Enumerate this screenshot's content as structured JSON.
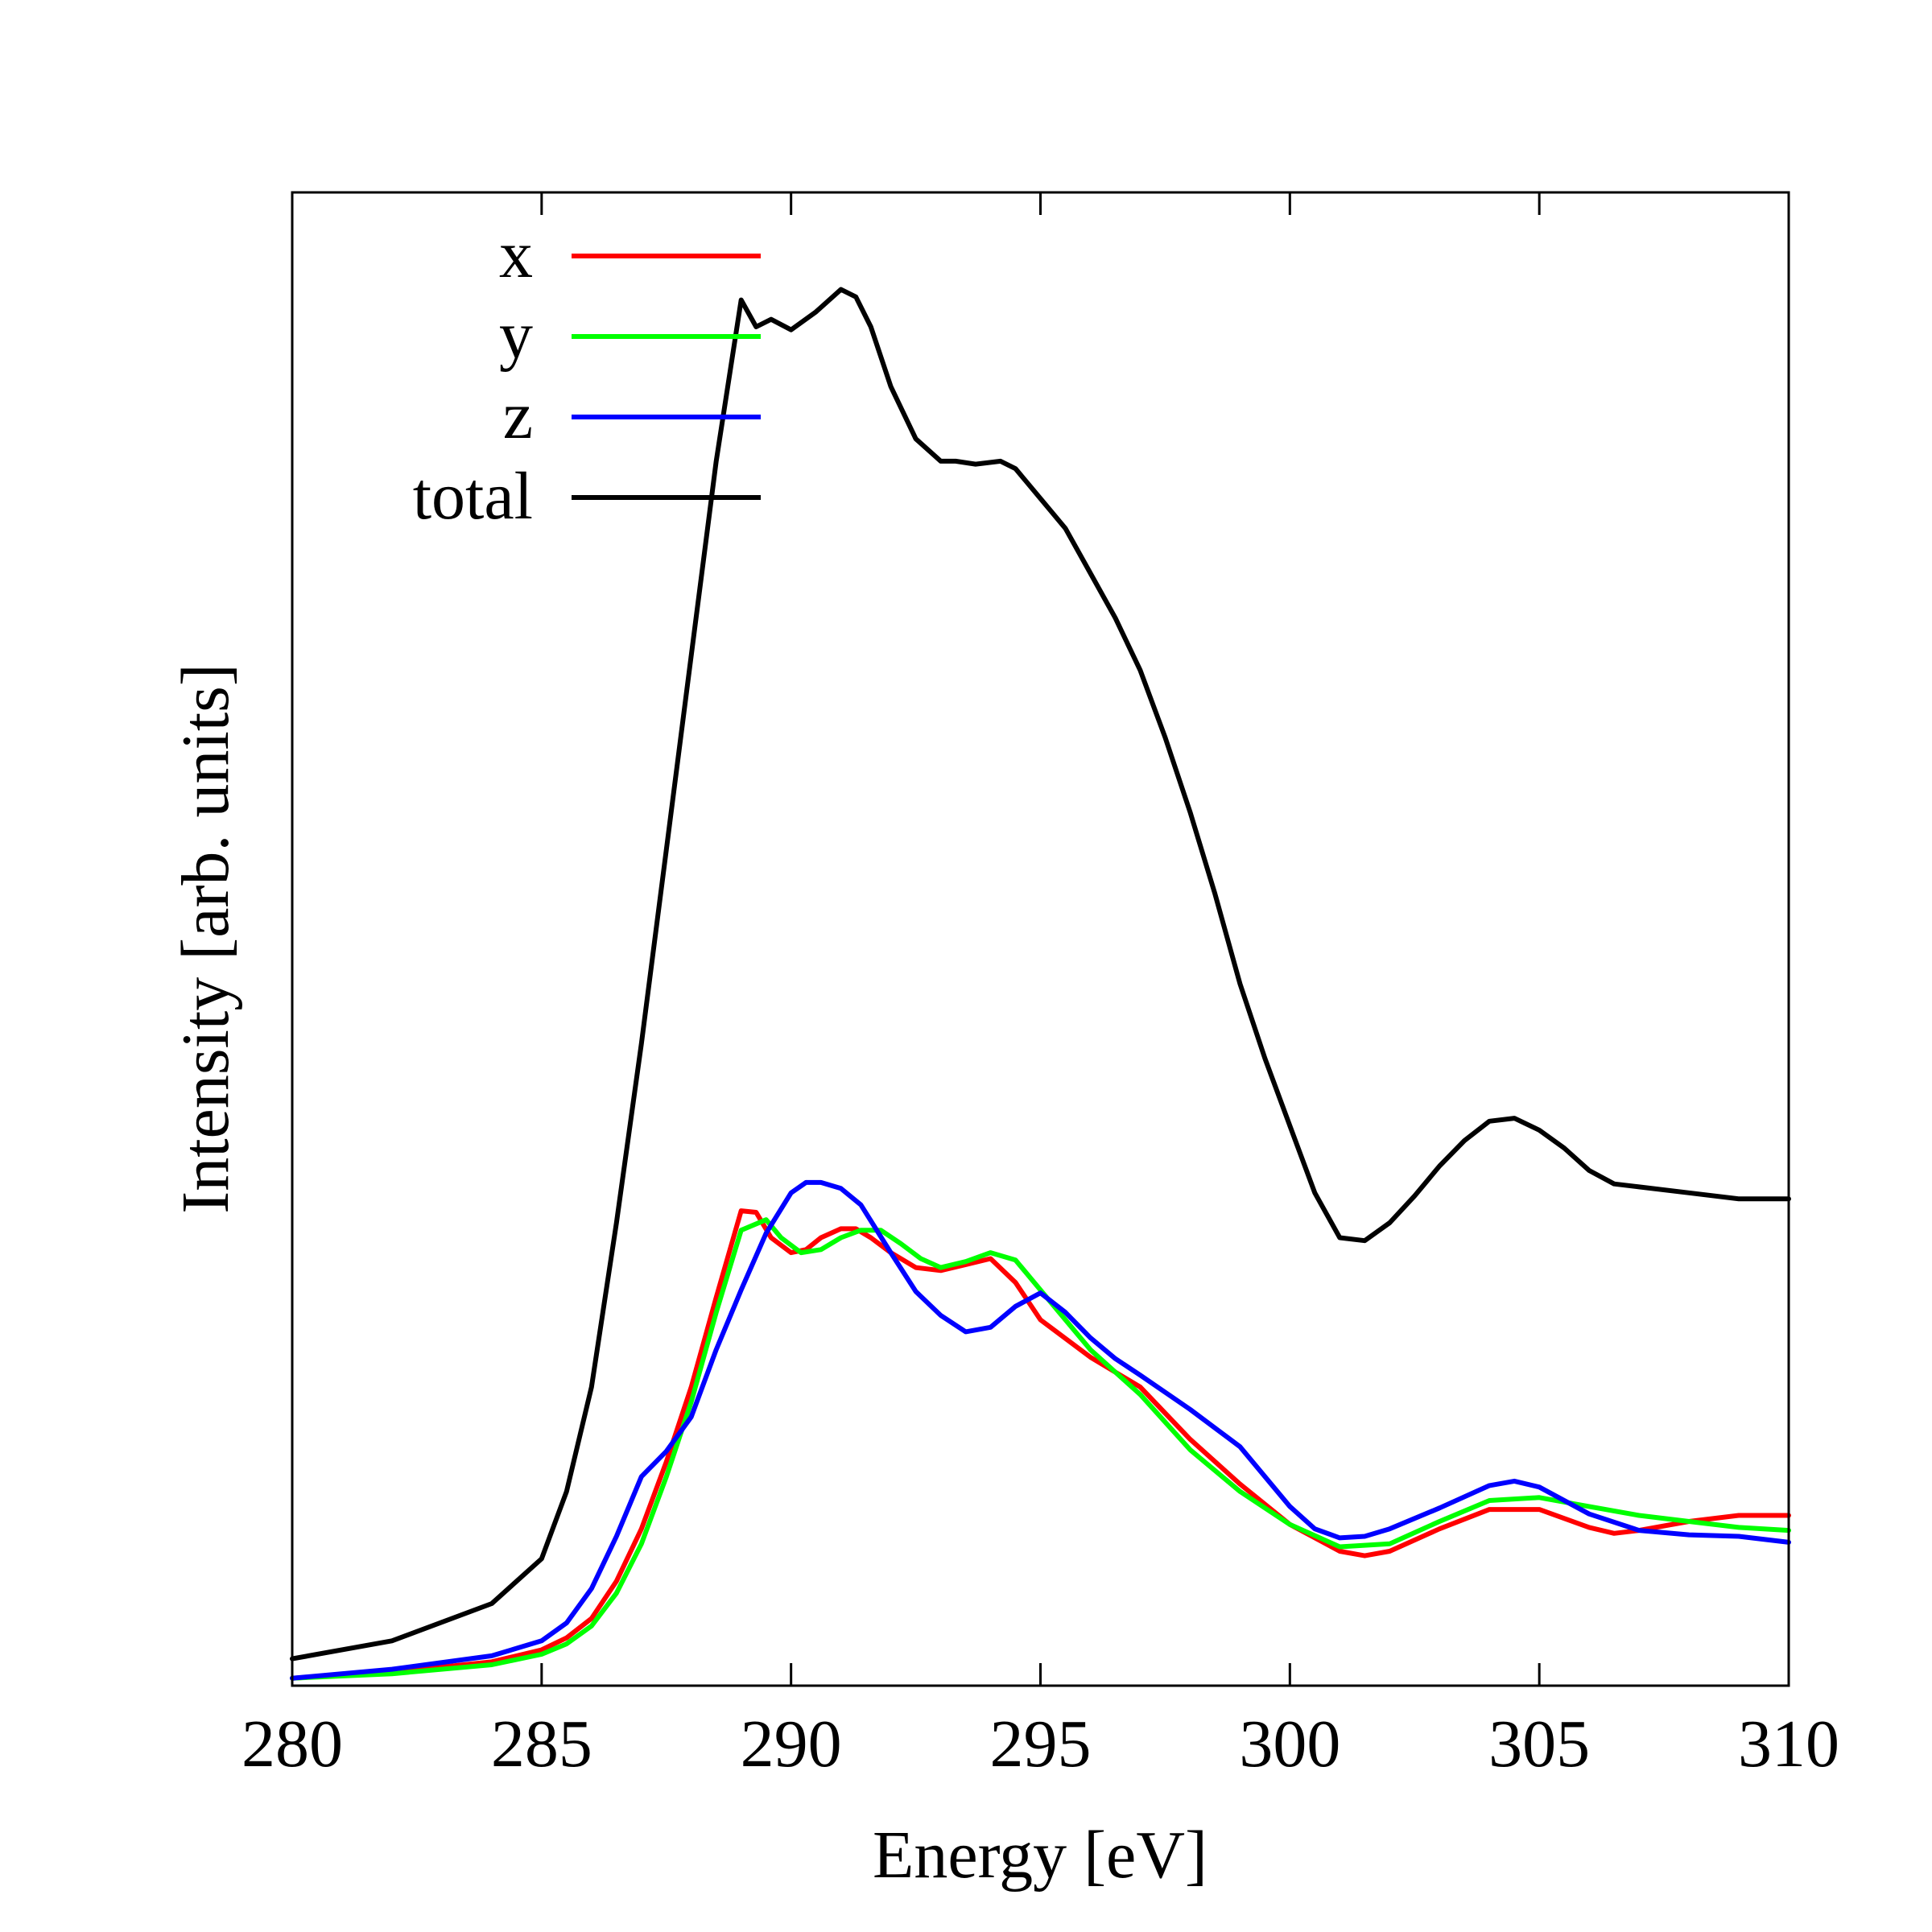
{
  "chart_data": {
    "type": "line",
    "title": "",
    "xlabel": "Energy [eV]",
    "ylabel": "Intensity [arb. units]",
    "xlim": [
      280,
      310
    ],
    "ylim": [
      0,
      1.0
    ],
    "xticks": [
      280,
      285,
      290,
      295,
      300,
      305,
      310
    ],
    "xtick_labels": [
      "280",
      "285",
      "290",
      "295",
      "300",
      "305",
      "310"
    ],
    "legend_position": "top-left",
    "series": [
      {
        "name": "x",
        "color": "#ff0000",
        "x": [
          280,
          282,
          284,
          285,
          285.5,
          286,
          286.5,
          287,
          287.5,
          288,
          288.5,
          289,
          289.3,
          289.6,
          290,
          290.3,
          290.6,
          291,
          291.3,
          291.6,
          292,
          292.5,
          293,
          293.5,
          294,
          294.5,
          295,
          296,
          297,
          298,
          299,
          300,
          301,
          301.5,
          302,
          303,
          304,
          305,
          306,
          306.5,
          307,
          308,
          309,
          310
        ],
        "y": [
          0.005,
          0.009,
          0.016,
          0.024,
          0.032,
          0.045,
          0.07,
          0.105,
          0.15,
          0.2,
          0.26,
          0.318,
          0.317,
          0.3,
          0.29,
          0.292,
          0.3,
          0.306,
          0.306,
          0.3,
          0.29,
          0.28,
          0.278,
          0.282,
          0.286,
          0.27,
          0.245,
          0.22,
          0.2,
          0.165,
          0.135,
          0.108,
          0.09,
          0.087,
          0.09,
          0.105,
          0.118,
          0.118,
          0.106,
          0.102,
          0.104,
          0.11,
          0.114,
          0.114
        ]
      },
      {
        "name": "y",
        "color": "#00ff00",
        "x": [
          280,
          282,
          284,
          285,
          285.5,
          286,
          286.5,
          287,
          287.5,
          288,
          288.5,
          289,
          289.5,
          289.8,
          290.2,
          290.6,
          291,
          291.4,
          291.8,
          292.2,
          292.6,
          293,
          293.5,
          294,
          294.5,
          295,
          296,
          297,
          298,
          299,
          300,
          301,
          302,
          303,
          304,
          305,
          306,
          307,
          308,
          309,
          310
        ],
        "y": [
          0.005,
          0.008,
          0.014,
          0.021,
          0.028,
          0.04,
          0.062,
          0.095,
          0.14,
          0.19,
          0.25,
          0.305,
          0.312,
          0.3,
          0.29,
          0.292,
          0.3,
          0.305,
          0.305,
          0.296,
          0.286,
          0.28,
          0.284,
          0.29,
          0.285,
          0.265,
          0.225,
          0.195,
          0.158,
          0.13,
          0.108,
          0.093,
          0.095,
          0.11,
          0.124,
          0.126,
          0.12,
          0.114,
          0.11,
          0.106,
          0.104
        ]
      },
      {
        "name": "z",
        "color": "#0000ff",
        "x": [
          280,
          282,
          284,
          285,
          285.5,
          286,
          286.5,
          287,
          287.5,
          288,
          288.5,
          289,
          289.5,
          290,
          290.3,
          290.6,
          291,
          291.4,
          292,
          292.5,
          293,
          293.5,
          294,
          294.5,
          295,
          295.5,
          296,
          296.5,
          297,
          298,
          299,
          300,
          300.5,
          301,
          301.5,
          302,
          303,
          304,
          304.5,
          305,
          306,
          307,
          308,
          309,
          310
        ],
        "y": [
          0.005,
          0.011,
          0.02,
          0.03,
          0.042,
          0.065,
          0.1,
          0.14,
          0.157,
          0.18,
          0.225,
          0.265,
          0.303,
          0.33,
          0.337,
          0.337,
          0.333,
          0.322,
          0.29,
          0.264,
          0.248,
          0.237,
          0.24,
          0.254,
          0.263,
          0.25,
          0.233,
          0.219,
          0.208,
          0.185,
          0.16,
          0.12,
          0.105,
          0.099,
          0.1,
          0.105,
          0.119,
          0.134,
          0.137,
          0.133,
          0.115,
          0.104,
          0.101,
          0.1,
          0.096
        ]
      },
      {
        "name": "total",
        "color": "#000000",
        "x": [
          280,
          282,
          284,
          285,
          285.5,
          286,
          286.5,
          287,
          287.5,
          288,
          288.5,
          289,
          289.3,
          289.6,
          290,
          290.5,
          291,
          291.3,
          291.6,
          292,
          292.5,
          293,
          293.3,
          293.7,
          294.2,
          294.5,
          295,
          295.5,
          296,
          296.5,
          297,
          297.5,
          298,
          298.5,
          299,
          299.5,
          300,
          300.5,
          301,
          301.5,
          302,
          302.5,
          303,
          303.5,
          304,
          304.5,
          305,
          305.5,
          306,
          306.5,
          307,
          308,
          309,
          310
        ],
        "y": [
          0.018,
          0.03,
          0.055,
          0.085,
          0.13,
          0.2,
          0.31,
          0.43,
          0.56,
          0.69,
          0.82,
          0.928,
          0.91,
          0.915,
          0.908,
          0.92,
          0.935,
          0.93,
          0.91,
          0.87,
          0.835,
          0.82,
          0.82,
          0.818,
          0.82,
          0.815,
          0.795,
          0.775,
          0.745,
          0.715,
          0.68,
          0.635,
          0.585,
          0.53,
          0.47,
          0.42,
          0.375,
          0.33,
          0.3,
          0.298,
          0.31,
          0.328,
          0.348,
          0.365,
          0.378,
          0.38,
          0.372,
          0.36,
          0.345,
          0.336,
          0.334,
          0.33,
          0.326,
          0.326
        ]
      }
    ]
  }
}
